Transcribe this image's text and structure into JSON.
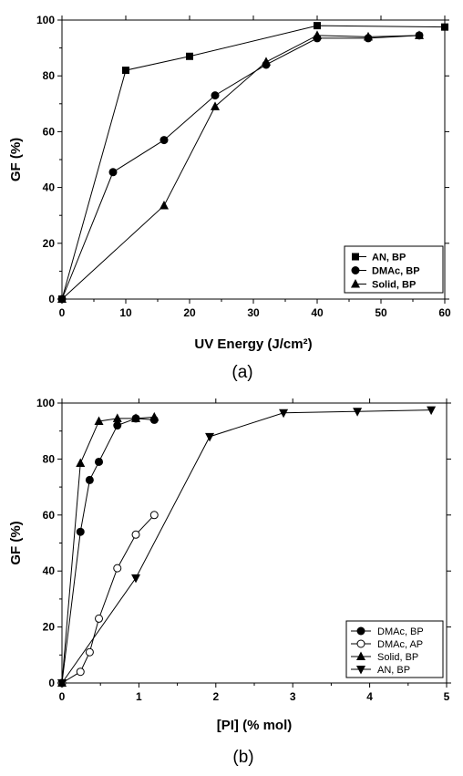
{
  "chart_data": [
    {
      "type": "line",
      "caption": "(a)",
      "xlabel": "UV Energy (J/cm²)",
      "ylabel": "GF (%)",
      "xlim": [
        0,
        60
      ],
      "ylim": [
        0,
        100
      ],
      "xticks": [
        "0",
        "10",
        "20",
        "30",
        "40",
        "50",
        "60"
      ],
      "yticks": [
        "0",
        "20",
        "40",
        "60",
        "80",
        "100"
      ],
      "grid": false,
      "legend_position": "bottom-right",
      "series": [
        {
          "name": "AN, BP",
          "marker": "square-filled",
          "x": [
            0,
            10,
            20,
            40,
            60
          ],
          "y": [
            0,
            82,
            87,
            98,
            97.5
          ]
        },
        {
          "name": "DMAc, BP",
          "marker": "circle-filled",
          "x": [
            0,
            8,
            16,
            24,
            32,
            40,
            48,
            56
          ],
          "y": [
            0,
            45.5,
            57,
            73,
            84,
            93.5,
            93.5,
            94.5
          ]
        },
        {
          "name": "Solid, BP",
          "marker": "triangle-up-filled",
          "x": [
            0,
            16,
            24,
            32,
            40,
            48,
            56
          ],
          "y": [
            0,
            33.5,
            69,
            85,
            94.5,
            94,
            94.5
          ]
        }
      ]
    },
    {
      "type": "line",
      "caption": "(b)",
      "xlabel": "[PI] (% mol)",
      "ylabel": "GF (%)",
      "xlim": [
        0,
        5
      ],
      "ylim": [
        0,
        100
      ],
      "xticks": [
        "0",
        "1",
        "2",
        "3",
        "4",
        "5"
      ],
      "yticks": [
        "0",
        "20",
        "40",
        "60",
        "80",
        "100"
      ],
      "grid": false,
      "legend_position": "bottom-right",
      "series": [
        {
          "name": "DMAc, BP",
          "marker": "circle-filled",
          "x": [
            0,
            0.24,
            0.36,
            0.48,
            0.72,
            0.96,
            1.2
          ],
          "y": [
            0,
            54,
            72.5,
            79,
            92,
            94.5,
            94
          ]
        },
        {
          "name": "DMAc, AP",
          "marker": "circle-open",
          "x": [
            0,
            0.24,
            0.36,
            0.48,
            0.72,
            0.96,
            1.2
          ],
          "y": [
            0,
            4,
            11,
            23,
            41,
            53,
            60
          ]
        },
        {
          "name": "Solid, BP",
          "marker": "triangle-up-filled",
          "x": [
            0,
            0.24,
            0.48,
            0.72,
            0.96,
            1.2
          ],
          "y": [
            0,
            78.5,
            93.5,
            94.5,
            94.5,
            95
          ]
        },
        {
          "name": "AN, BP",
          "marker": "triangle-down-filled",
          "x": [
            0,
            0.96,
            1.92,
            2.88,
            3.84,
            4.8
          ],
          "y": [
            0,
            37.5,
            88,
            96.5,
            97,
            97.5
          ]
        }
      ]
    }
  ]
}
